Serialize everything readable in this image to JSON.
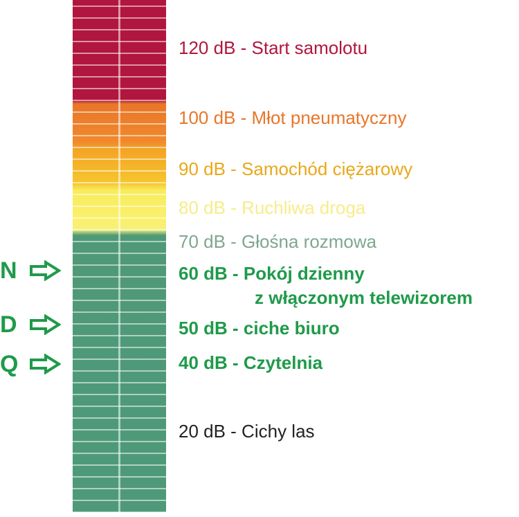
{
  "levels": [
    {
      "text": "120 dB - Start samolotu",
      "color": "#b0163e"
    },
    {
      "text": "100 dB - Młot pneumatyczny",
      "color": "#e8762a"
    },
    {
      "text": "90 dB - Samochód ciężarowy",
      "color": "#e8a81a"
    },
    {
      "text": "80 dB - Ruchliwa droga",
      "color": "#f7ec8a"
    },
    {
      "text": "70 dB - Głośna rozmowa",
      "color": "#7fa690"
    },
    {
      "text": "60 dB - Pokój dzienny",
      "color": "#1f9a4a"
    },
    {
      "text": "z włączonym telewizorem",
      "color": "#1f9a4a"
    },
    {
      "text": "50 dB - ciche biuro",
      "color": "#1f9a4a"
    },
    {
      "text": "40 dB - Czytelnia",
      "color": "#1f9a4a"
    },
    {
      "text": "20 dB - Cichy las",
      "color": "#222222"
    }
  ],
  "markers": [
    {
      "letter": "N",
      "color": "#1f9a4a",
      "icon": "right-arrow-icon"
    },
    {
      "letter": "D",
      "color": "#1f9a4a",
      "icon": "right-arrow-icon"
    },
    {
      "letter": "Q",
      "color": "#1f9a4a",
      "icon": "right-arrow-icon"
    }
  ]
}
